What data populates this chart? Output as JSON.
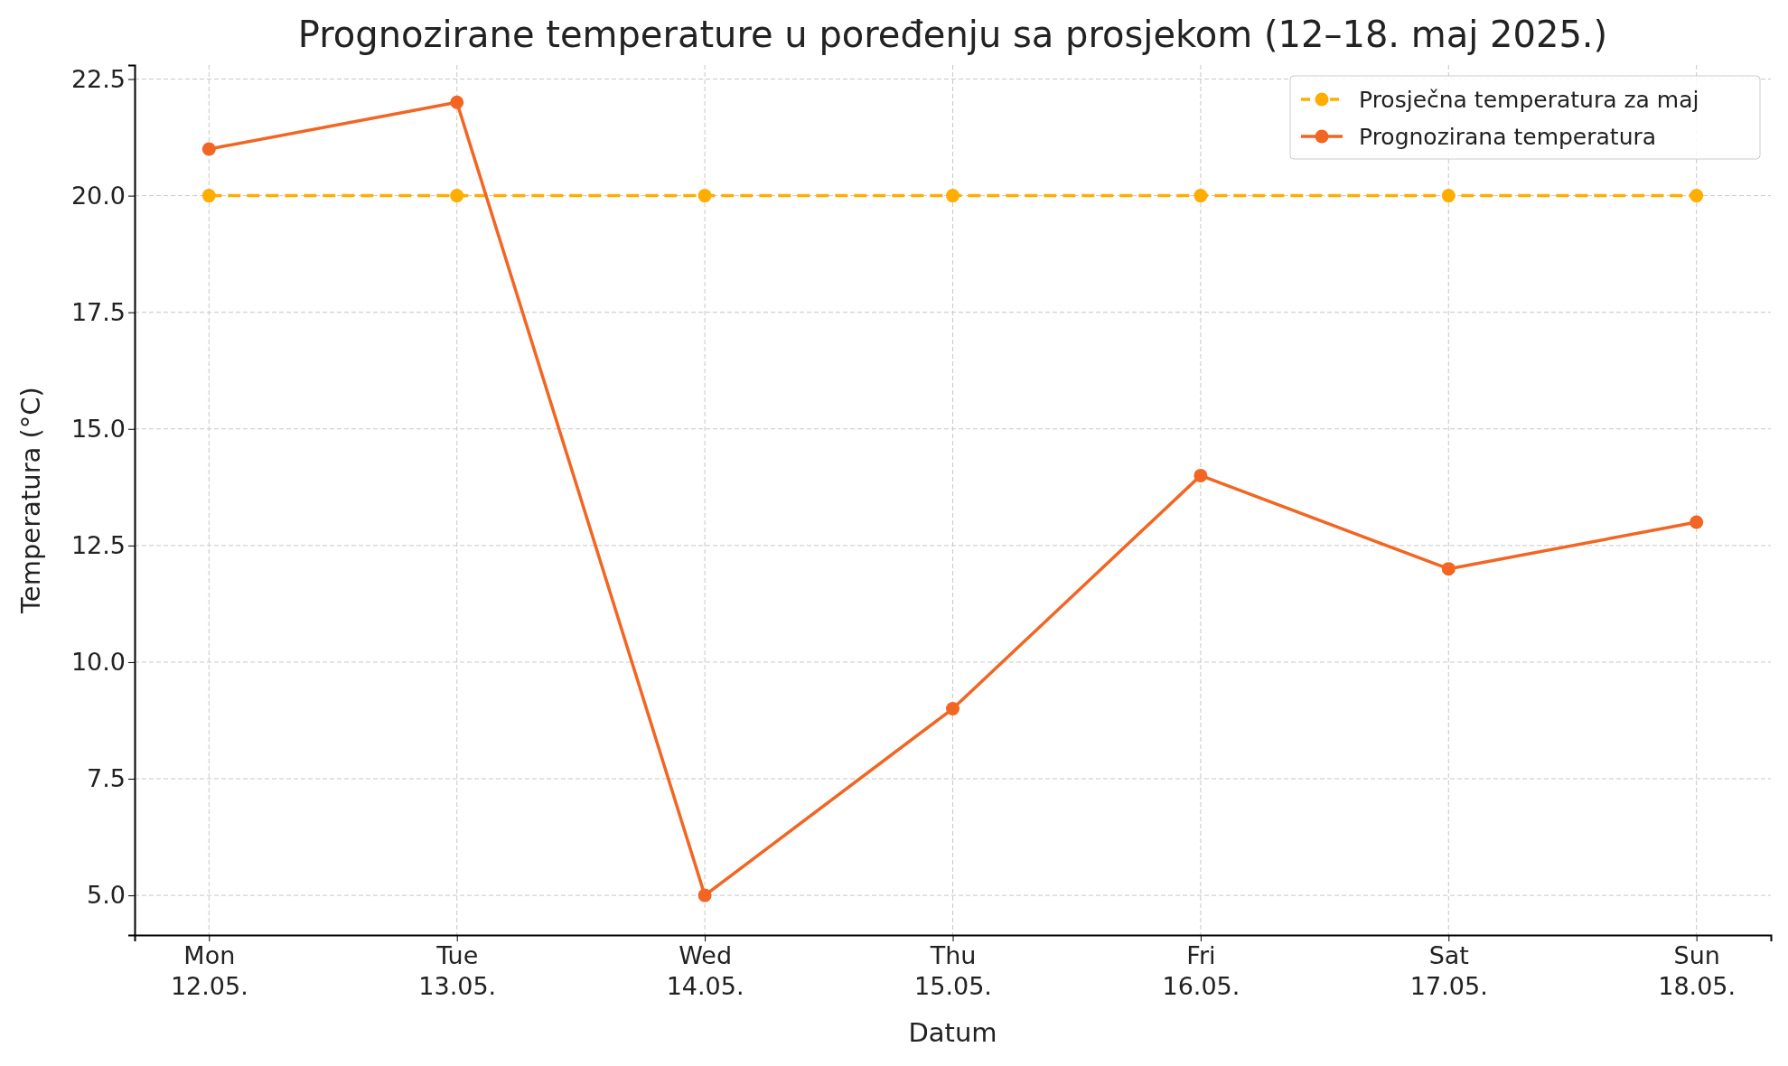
{
  "chart_data": {
    "type": "line",
    "title": "Prognozirane temperature u poređenju sa prosjekom (12–18. maj 2025.)",
    "xlabel": "Datum",
    "ylabel": "Temperatura (°C)",
    "categories": [
      "Mon\n12.05.",
      "Tue\n13.05.",
      "Wed\n14.05.",
      "Thu\n15.05.",
      "Fri\n16.05.",
      "Sat\n17.05.",
      "Sun\n18.05."
    ],
    "series": [
      {
        "name": "Prosječna temperatura za maj",
        "color": "#ffae00",
        "line_style": "dashed",
        "values": [
          20,
          20,
          20,
          20,
          20,
          20,
          20
        ]
      },
      {
        "name": "Prognozirana temperatura",
        "color": "#f26522",
        "line_style": "solid",
        "values": [
          21,
          22,
          5,
          9,
          14,
          12,
          13
        ]
      }
    ],
    "ylim": [
      4.15,
      22.8
    ],
    "yticks": [
      {
        "value": 5,
        "label": "5.0"
      },
      {
        "value": 7.5,
        "label": "7.5"
      },
      {
        "value": 10,
        "label": "10.0"
      },
      {
        "value": 12.5,
        "label": "12.5"
      },
      {
        "value": 15,
        "label": "15.0"
      },
      {
        "value": 17.5,
        "label": "17.5"
      },
      {
        "value": 20,
        "label": "20.0"
      },
      {
        "value": 22.5,
        "label": "22.5"
      }
    ],
    "grid": true,
    "legend": "top right",
    "marker": "circle"
  }
}
